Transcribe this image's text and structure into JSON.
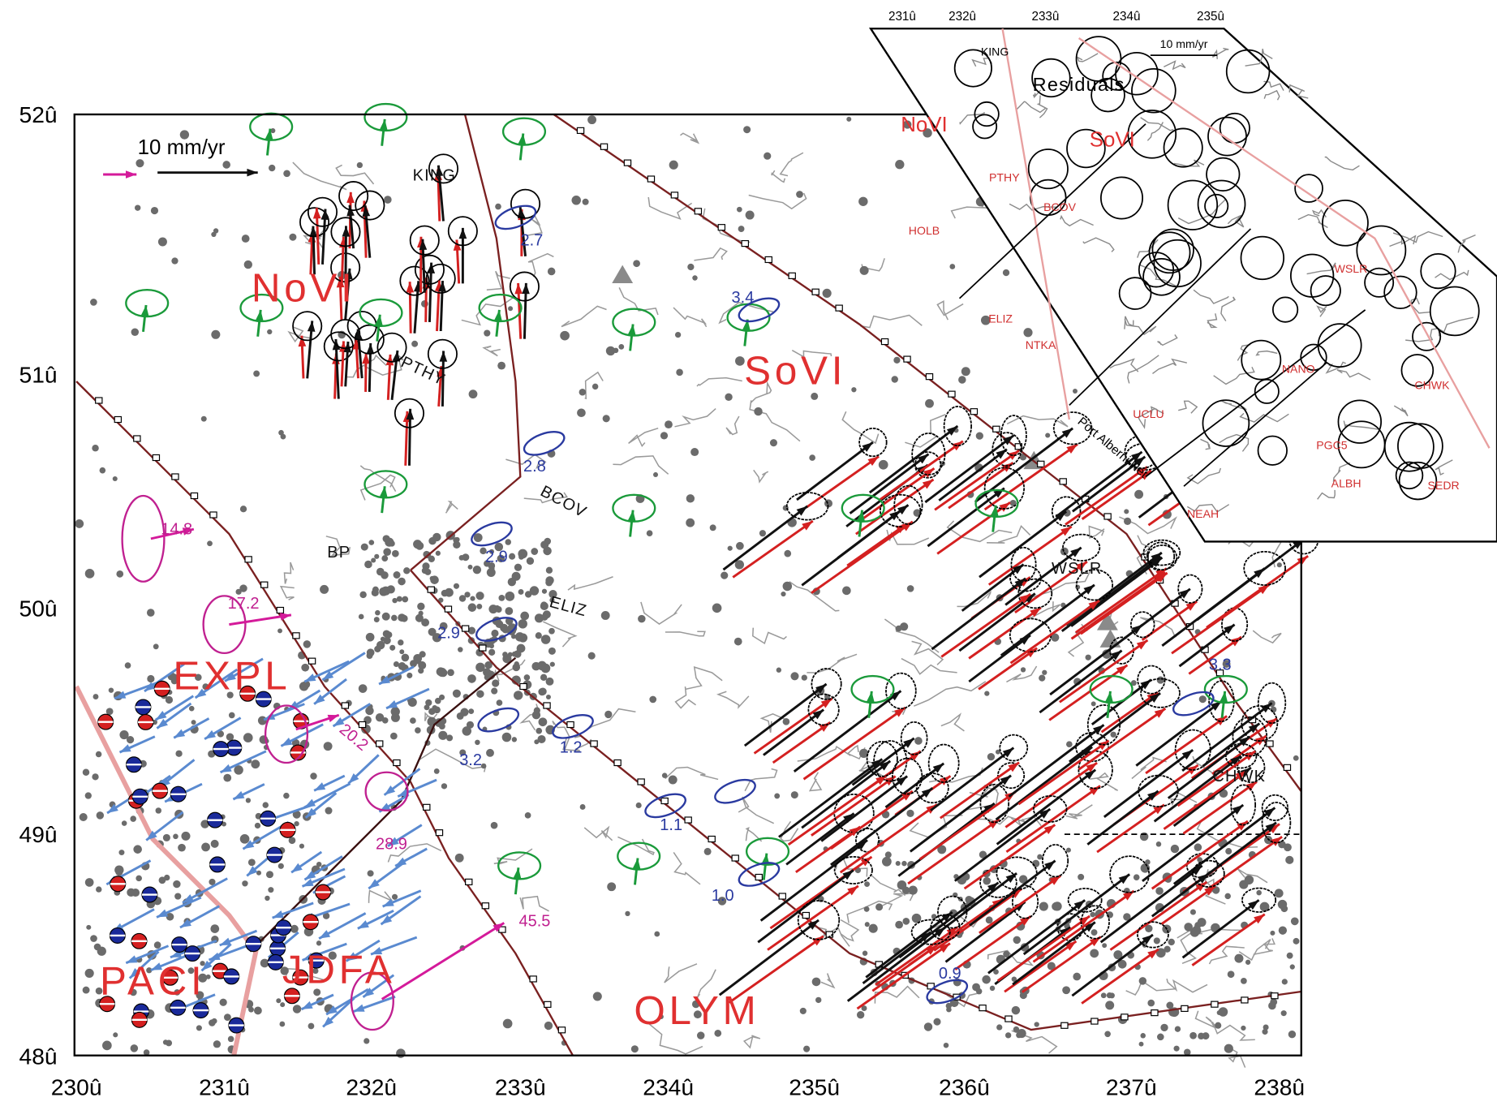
{
  "map": {
    "lat_labels": [
      "52û",
      "51û",
      "50û",
      "49û",
      "48û"
    ],
    "lon_labels": [
      "230û",
      "231û",
      "232û",
      "233û",
      "234û",
      "235û",
      "236û",
      "237û",
      "238û"
    ],
    "scale_label": "10 mm/yr",
    "plates": [
      "NoVI",
      "SoVI",
      "EXPL",
      "PACI",
      "JDFA",
      "OLYM"
    ],
    "stations": [
      "KING",
      "PTHY",
      "BCOV",
      "ELIZ",
      "BP",
      "WSLR",
      "CHWK"
    ],
    "rates": [
      "14.8",
      "17.2",
      "20.2",
      "28.9",
      "45.5"
    ],
    "blue_rates": [
      "2.7",
      "3.4",
      "2.8",
      "2.9",
      "2.9",
      "3.2",
      "1.2",
      "1.1",
      "1.0",
      "0.9",
      "3.3"
    ]
  },
  "inset": {
    "lon_labels": [
      "231û",
      "232û",
      "233û",
      "234û",
      "235û"
    ],
    "scale_label": "10 mm/yr",
    "title": "Residuals",
    "regions": [
      "NoVI",
      "SoVI"
    ],
    "stations": [
      "KING",
      "PTHY",
      "HOLB",
      "BCOV",
      "ELIZ",
      "NTKA",
      "UCLU",
      "WSLR",
      "NANO",
      "CHWK",
      "PGC5",
      "NEAH",
      "SEDR",
      "ALBH"
    ],
    "network_label": "Port Alberni Net"
  }
}
